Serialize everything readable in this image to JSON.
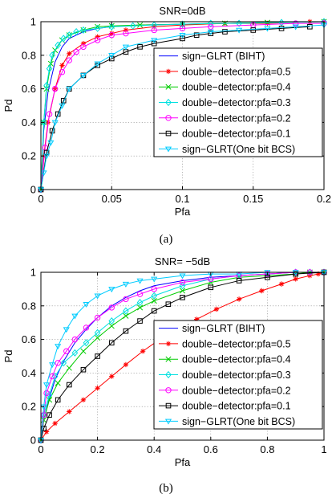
{
  "chart_data": [
    {
      "type": "line",
      "title": "SNR=0dB",
      "xlabel": "Pfa",
      "ylabel": "Pd",
      "xlim": [
        0,
        0.2
      ],
      "ylim": [
        0,
        1
      ],
      "xticks": [
        0,
        0.05,
        0.1,
        0.15,
        0.2
      ],
      "xtick_labels": [
        "0",
        "0.05",
        "0.1",
        "0.15",
        "0.2"
      ],
      "yticks": [
        0,
        0.2,
        0.4,
        0.6,
        0.8,
        1
      ],
      "ytick_labels": [
        "0",
        "0.2",
        "0.4",
        "0.6",
        "0.8",
        "1"
      ],
      "grid": true,
      "legend_position": "right",
      "caption": "(a)",
      "series": [
        {
          "name": "sign−GLRT (BIHT)",
          "color": "#0000ff",
          "marker": "none",
          "x": [
            0,
            0.002,
            0.005,
            0.01,
            0.015,
            0.02,
            0.03,
            0.04,
            0.05,
            0.07,
            0.1,
            0.13,
            0.16,
            0.2
          ],
          "y": [
            0,
            0.35,
            0.58,
            0.76,
            0.85,
            0.9,
            0.94,
            0.96,
            0.97,
            0.98,
            0.985,
            0.99,
            0.995,
            1.0
          ]
        },
        {
          "name": "double−detector:pfa=0.5",
          "color": "#ff0000",
          "marker": "star",
          "x": [
            0,
            0.002,
            0.005,
            0.01,
            0.015,
            0.02,
            0.03,
            0.04,
            0.05,
            0.06,
            0.08,
            0.1,
            0.13,
            0.16,
            0.19,
            0.2
          ],
          "y": [
            0,
            0.2,
            0.4,
            0.6,
            0.74,
            0.81,
            0.87,
            0.91,
            0.93,
            0.95,
            0.97,
            0.98,
            0.99,
            0.99,
            1.0,
            1.0
          ]
        },
        {
          "name": "double−detector:pfa=0.4",
          "color": "#00cc00",
          "marker": "x",
          "x": [
            0,
            0.002,
            0.004,
            0.007,
            0.01,
            0.015,
            0.02,
            0.03,
            0.04,
            0.05,
            0.07,
            0.1,
            0.13,
            0.16,
            0.2
          ],
          "y": [
            0,
            0.4,
            0.6,
            0.75,
            0.83,
            0.89,
            0.92,
            0.95,
            0.97,
            0.975,
            0.98,
            0.985,
            0.99,
            0.995,
            1.0
          ]
        },
        {
          "name": "double−detector:pfa=0.3",
          "color": "#00e0e0",
          "marker": "diamond",
          "x": [
            0,
            0.002,
            0.004,
            0.006,
            0.008,
            0.012,
            0.016,
            0.02,
            0.025,
            0.03,
            0.04,
            0.05,
            0.065,
            0.08,
            0.1,
            0.12,
            0.14,
            0.17,
            0.2
          ],
          "y": [
            0,
            0.4,
            0.62,
            0.72,
            0.8,
            0.86,
            0.9,
            0.92,
            0.94,
            0.95,
            0.96,
            0.97,
            0.975,
            0.98,
            0.985,
            0.99,
            0.99,
            0.995,
            1.0
          ]
        },
        {
          "name": "double−detector:pfa=0.2",
          "color": "#ff00ff",
          "marker": "circle",
          "x": [
            0,
            0.003,
            0.006,
            0.01,
            0.015,
            0.02,
            0.025,
            0.03,
            0.04,
            0.05,
            0.06,
            0.08,
            0.1,
            0.12,
            0.15,
            0.18,
            0.2
          ],
          "y": [
            0,
            0.25,
            0.45,
            0.6,
            0.7,
            0.77,
            0.82,
            0.85,
            0.89,
            0.92,
            0.93,
            0.95,
            0.96,
            0.97,
            0.98,
            0.99,
            0.99
          ]
        },
        {
          "name": "double−detector:pfa=0.1",
          "color": "#000000",
          "marker": "square",
          "x": [
            0,
            0.004,
            0.008,
            0.012,
            0.016,
            0.02,
            0.03,
            0.04,
            0.05,
            0.06,
            0.07,
            0.08,
            0.1,
            0.11,
            0.12,
            0.13,
            0.15,
            0.17,
            0.19
          ],
          "y": [
            0,
            0.22,
            0.35,
            0.45,
            0.53,
            0.6,
            0.68,
            0.74,
            0.78,
            0.82,
            0.85,
            0.87,
            0.9,
            0.92,
            0.93,
            0.94,
            0.95,
            0.96,
            0.97
          ]
        },
        {
          "name": "sign−GLRT(One bit BCS)",
          "color": "#00ccff",
          "marker": "triangle-down",
          "x": [
            0,
            0.002,
            0.004,
            0.007,
            0.01,
            0.015,
            0.02,
            0.03,
            0.04,
            0.05,
            0.06,
            0.08,
            0.1,
            0.12,
            0.14,
            0.16,
            0.18,
            0.2
          ],
          "y": [
            0,
            0.1,
            0.2,
            0.28,
            0.4,
            0.5,
            0.6,
            0.68,
            0.75,
            0.8,
            0.85,
            0.89,
            0.92,
            0.94,
            0.95,
            0.96,
            0.97,
            0.98
          ]
        }
      ]
    },
    {
      "type": "line",
      "title": "SNR= −5dB",
      "xlabel": "Pfa",
      "ylabel": "Pd",
      "xlim": [
        0,
        1
      ],
      "ylim": [
        0,
        1
      ],
      "xticks": [
        0,
        0.2,
        0.4,
        0.6,
        0.8,
        1
      ],
      "xtick_labels": [
        "0",
        "0.2",
        "0.4",
        "0.6",
        "0.8",
        "1"
      ],
      "yticks": [
        0,
        0.2,
        0.4,
        0.6,
        0.8,
        1
      ],
      "ytick_labels": [
        "0",
        "0.2",
        "0.4",
        "0.6",
        "0.8",
        "1"
      ],
      "grid": true,
      "legend_position": "bottom-right",
      "caption": "(b)",
      "series": [
        {
          "name": "sign−GLRT (BIHT)",
          "color": "#0000ff",
          "marker": "none",
          "x": [
            0,
            0.01,
            0.03,
            0.05,
            0.08,
            0.12,
            0.16,
            0.2,
            0.25,
            0.3,
            0.35,
            0.4,
            0.5,
            0.6,
            0.7,
            0.8,
            0.9,
            1.0
          ],
          "y": [
            0,
            0.12,
            0.25,
            0.36,
            0.47,
            0.58,
            0.66,
            0.73,
            0.8,
            0.85,
            0.89,
            0.92,
            0.95,
            0.97,
            0.98,
            0.99,
            1.0,
            1.0
          ]
        },
        {
          "name": "double−detector:pfa=0.5",
          "color": "#ff0000",
          "marker": "star",
          "x": [
            0,
            0.02,
            0.05,
            0.1,
            0.15,
            0.2,
            0.25,
            0.3,
            0.36,
            0.42,
            0.48,
            0.55,
            0.62,
            0.7,
            0.78,
            0.85,
            0.9,
            0.95,
            0.98,
            1.0
          ],
          "y": [
            0,
            0.05,
            0.1,
            0.17,
            0.24,
            0.31,
            0.38,
            0.45,
            0.53,
            0.6,
            0.66,
            0.72,
            0.78,
            0.84,
            0.89,
            0.93,
            0.96,
            0.98,
            0.99,
            1.0
          ]
        },
        {
          "name": "double−detector:pfa=0.4",
          "color": "#00cc00",
          "marker": "x",
          "x": [
            0,
            0.01,
            0.03,
            0.06,
            0.1,
            0.15,
            0.2,
            0.25,
            0.3,
            0.35,
            0.4,
            0.5,
            0.6,
            0.7,
            0.8,
            0.9,
            0.95,
            1.0
          ],
          "y": [
            0,
            0.12,
            0.24,
            0.34,
            0.43,
            0.53,
            0.61,
            0.68,
            0.74,
            0.79,
            0.83,
            0.89,
            0.94,
            0.97,
            0.98,
            0.99,
            1.0,
            1.0
          ]
        },
        {
          "name": "double−detector:pfa=0.3",
          "color": "#00e0e0",
          "marker": "diamond",
          "x": [
            0,
            0.01,
            0.03,
            0.05,
            0.08,
            0.12,
            0.16,
            0.2,
            0.25,
            0.3,
            0.35,
            0.4,
            0.5,
            0.6,
            0.7,
            0.8,
            0.9,
            0.95,
            1.0
          ],
          "y": [
            0,
            0.15,
            0.27,
            0.38,
            0.46,
            0.52,
            0.58,
            0.64,
            0.71,
            0.77,
            0.82,
            0.86,
            0.92,
            0.96,
            0.98,
            0.99,
            1.0,
            1.0,
            1.0
          ]
        },
        {
          "name": "double−detector:pfa=0.2",
          "color": "#ff00ff",
          "marker": "circle",
          "x": [
            0,
            0.01,
            0.02,
            0.04,
            0.06,
            0.09,
            0.12,
            0.16,
            0.2,
            0.25,
            0.3,
            0.35,
            0.4,
            0.5,
            0.6,
            0.7,
            0.8,
            0.9,
            0.95,
            1.0
          ],
          "y": [
            0,
            0.15,
            0.28,
            0.38,
            0.46,
            0.53,
            0.6,
            0.67,
            0.73,
            0.79,
            0.84,
            0.87,
            0.9,
            0.94,
            0.96,
            0.98,
            0.99,
            1.0,
            1.0,
            1.0
          ]
        },
        {
          "name": "double−detector:pfa=0.1",
          "color": "#000000",
          "marker": "square",
          "x": [
            0,
            0.01,
            0.03,
            0.06,
            0.1,
            0.15,
            0.2,
            0.25,
            0.3,
            0.35,
            0.4,
            0.45,
            0.5,
            0.6,
            0.7,
            0.8,
            0.9,
            1.0
          ],
          "y": [
            0,
            0.07,
            0.15,
            0.24,
            0.33,
            0.42,
            0.5,
            0.58,
            0.65,
            0.71,
            0.77,
            0.81,
            0.85,
            0.91,
            0.95,
            0.97,
            0.99,
            1.0
          ]
        },
        {
          "name": "sign−GLRT(One bit BCS)",
          "color": "#00ccff",
          "marker": "triangle-down",
          "x": [
            0,
            0.01,
            0.02,
            0.04,
            0.06,
            0.09,
            0.12,
            0.16,
            0.2,
            0.25,
            0.3,
            0.35,
            0.4,
            0.5,
            0.6,
            0.7,
            0.8,
            0.9,
            1.0
          ],
          "y": [
            0,
            0.2,
            0.33,
            0.45,
            0.56,
            0.66,
            0.74,
            0.81,
            0.86,
            0.9,
            0.93,
            0.95,
            0.96,
            0.98,
            0.99,
            0.99,
            1.0,
            1.0,
            1.0
          ]
        }
      ]
    }
  ]
}
